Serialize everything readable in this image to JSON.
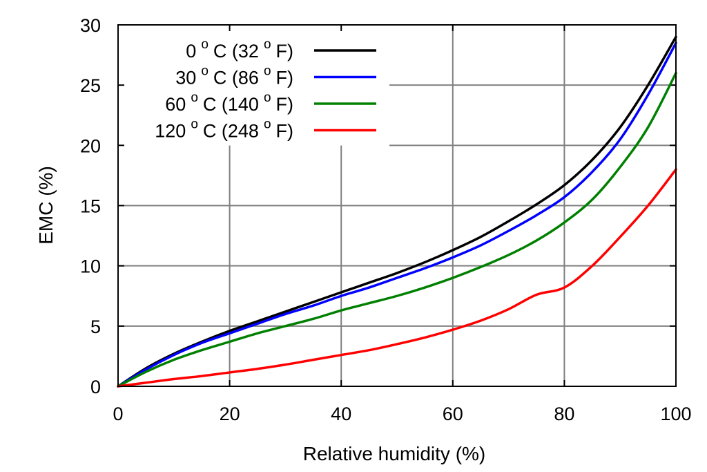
{
  "chart_data": {
    "type": "line",
    "title": "",
    "xlabel": "Relative humidity (%)",
    "ylabel": "EMC (%)",
    "xlim": [
      0,
      100
    ],
    "ylim": [
      0,
      30
    ],
    "xticks": [
      0,
      20,
      40,
      60,
      80,
      100
    ],
    "yticks": [
      0,
      5,
      10,
      15,
      20,
      25,
      30
    ],
    "grid": true,
    "legend_position": "top-left",
    "series": [
      {
        "name": "0 o C (32 o F)",
        "legend": {
          "num": "0",
          "sup1": "o",
          "mid": "C (32",
          "sup2": "o",
          "end": "F)"
        },
        "color": "#000000",
        "x": [
          0,
          5,
          10,
          15,
          20,
          25,
          30,
          35,
          40,
          45,
          50,
          55,
          60,
          65,
          70,
          75,
          80,
          85,
          90,
          95,
          100
        ],
        "y": [
          0,
          1.5,
          2.7,
          3.7,
          4.6,
          5.4,
          6.2,
          7.0,
          7.8,
          8.6,
          9.4,
          10.3,
          11.3,
          12.4,
          13.7,
          15.1,
          16.7,
          18.8,
          21.5,
          25.0,
          29.0
        ]
      },
      {
        "name": "30 o C (86 o F)",
        "legend": {
          "num": "30",
          "sup1": "o",
          "mid": "C (86",
          "sup2": "o",
          "end": "F)"
        },
        "color": "#0000ff",
        "x": [
          0,
          5,
          10,
          15,
          20,
          25,
          30,
          35,
          40,
          45,
          50,
          55,
          60,
          65,
          70,
          75,
          80,
          85,
          90,
          95,
          100
        ],
        "y": [
          0,
          1.4,
          2.6,
          3.6,
          4.4,
          5.2,
          6.0,
          6.7,
          7.5,
          8.2,
          9.0,
          9.8,
          10.7,
          11.7,
          12.9,
          14.2,
          15.7,
          17.8,
          20.5,
          24.2,
          28.5
        ]
      },
      {
        "name": "60 o C (140 o F)",
        "legend": {
          "num": "60",
          "sup1": "o",
          "mid": "C (140",
          "sup2": "o",
          "end": "F)"
        },
        "color": "#008000",
        "x": [
          0,
          5,
          10,
          15,
          20,
          25,
          30,
          35,
          40,
          45,
          50,
          55,
          60,
          65,
          70,
          75,
          80,
          85,
          90,
          95,
          100
        ],
        "y": [
          0,
          1.2,
          2.2,
          3.0,
          3.7,
          4.4,
          5.0,
          5.6,
          6.3,
          6.9,
          7.5,
          8.2,
          9.0,
          9.9,
          10.9,
          12.1,
          13.6,
          15.5,
          18.2,
          21.5,
          26.0
        ]
      },
      {
        "name": "120 o C (248 o F)",
        "legend": {
          "num": "120",
          "sup1": "o",
          "mid": "C (248",
          "sup2": "o",
          "end": "F)"
        },
        "color": "#ff0000",
        "x": [
          0,
          5,
          10,
          15,
          20,
          25,
          30,
          35,
          40,
          45,
          50,
          55,
          60,
          65,
          70,
          75,
          80,
          85,
          90,
          95,
          100
        ],
        "y": [
          0,
          0.3,
          0.6,
          0.85,
          1.15,
          1.45,
          1.8,
          2.2,
          2.6,
          3.0,
          3.5,
          4.05,
          4.7,
          5.45,
          6.4,
          7.6,
          8.2,
          10.0,
          12.4,
          15.0,
          18.0
        ]
      }
    ]
  }
}
